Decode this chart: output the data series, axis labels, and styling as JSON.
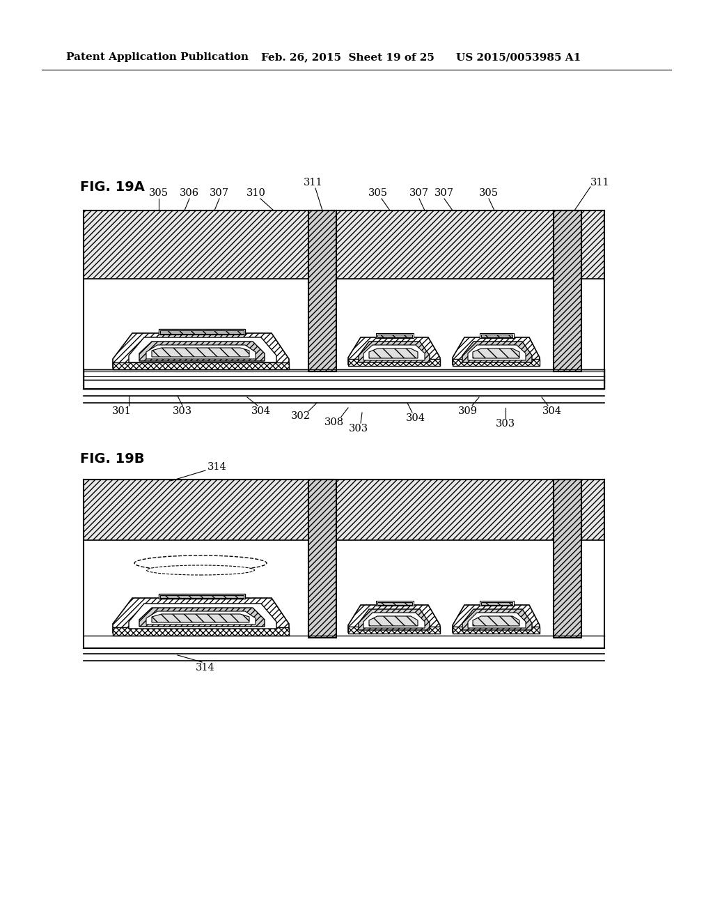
{
  "title_left": "Patent Application Publication",
  "title_mid": "Feb. 26, 2015  Sheet 19 of 25",
  "title_right": "US 2015/0053985 A1",
  "fig_label_A": "FIG. 19A",
  "fig_label_B": "FIG. 19B",
  "bg_color": "#ffffff",
  "line_color": "#000000",
  "hatch_color": "#000000",
  "header_fontsize": 11,
  "label_fontsize": 12,
  "anno_fontsize": 10.5
}
